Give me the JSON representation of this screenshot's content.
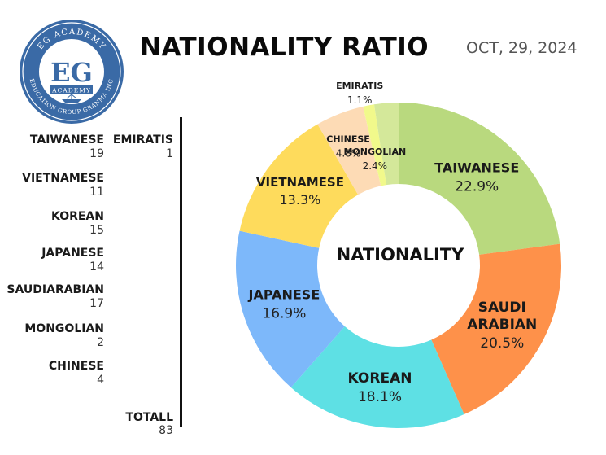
{
  "logo": {
    "top_text": "EG ACADEMY",
    "initials": "EG",
    "sub_text": "ACADEMY",
    "ring_text": "EDUCATION GROUP GRANMA INC"
  },
  "title": "NATIONALITY RATIO",
  "date": "OCT, 29, 2024",
  "counts": {
    "col1": [
      {
        "label": "TAIWANESE",
        "value": "19"
      },
      {
        "label": "VIETNAMESE",
        "value": "11"
      },
      {
        "label": "KOREAN",
        "value": "15"
      },
      {
        "label": "JAPANESE",
        "value": "14"
      },
      {
        "label": "SAUDIARABIAN",
        "value": "17"
      },
      {
        "label": "MONGOLIAN",
        "value": "2"
      },
      {
        "label": "CHINESE",
        "value": "4"
      }
    ],
    "col2": [
      {
        "label": "EMIRATIS",
        "value": "1"
      }
    ],
    "total_label": "TOTALL",
    "total_value": "83"
  },
  "chart_data": {
    "type": "pie",
    "donut": true,
    "center_label": "NATIONALITY",
    "slices": [
      {
        "name": "TAIWANESE",
        "percent": 22.9,
        "percent_label": "22.9%",
        "color": "#b9d97e"
      },
      {
        "name": "SAUDI ARABIAN",
        "name_lines": [
          "SAUDI",
          "ARABIAN"
        ],
        "percent": 20.5,
        "percent_label": "20.5%",
        "color": "#fe914a"
      },
      {
        "name": "KOREAN",
        "percent": 18.1,
        "percent_label": "18.1%",
        "color": "#5ee0e4"
      },
      {
        "name": "JAPANESE",
        "percent": 16.9,
        "percent_label": "16.9%",
        "color": "#7db8fa"
      },
      {
        "name": "VIETNAMESE",
        "percent": 13.3,
        "percent_label": "13.3%",
        "color": "#fedb5c"
      },
      {
        "name": "CHINESE",
        "percent": 4.8,
        "percent_label": "4.8%",
        "color": "#fddbb5"
      },
      {
        "name": "EMIRATIS",
        "percent": 1.1,
        "percent_label": "1.1%",
        "color": "#f1f98b"
      },
      {
        "name": "MONGOLIAN",
        "percent": 2.4,
        "percent_label": "2.4%",
        "color": "#d4e89a"
      }
    ]
  }
}
